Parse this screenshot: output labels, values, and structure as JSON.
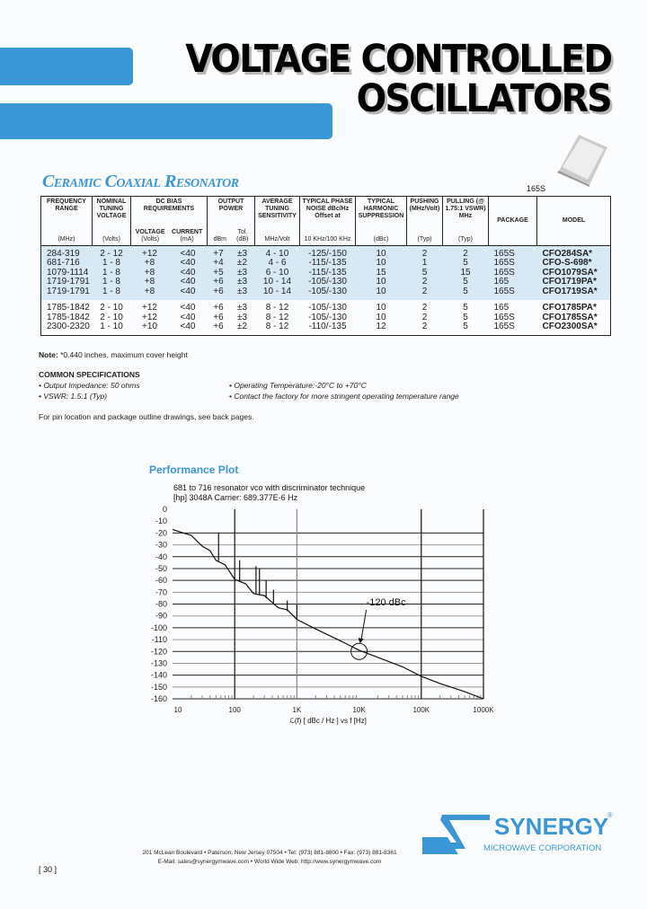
{
  "header": {
    "title_line1": "VOLTAGE CONTROLLED",
    "title_line2": "OSCILLATORS",
    "accent_color": "#3a96d4"
  },
  "section": {
    "subtitle": "Ceramic Coaxial Resonator",
    "package_image_label": "165S"
  },
  "table": {
    "headers": [
      {
        "label": "FREQUENCY RANGE",
        "unit": "(MHz)"
      },
      {
        "label": "NOMINAL TUNING VOLTAGE",
        "unit": "(Volts)"
      },
      {
        "label": "DC BIAS REQUIREMENTS",
        "sub": [
          {
            "label": "VOLTAGE",
            "unit": "(Volts)"
          },
          {
            "label": "CURRENT",
            "unit": "(mA)"
          }
        ]
      },
      {
        "label": "OUTPUT POWER",
        "sub": [
          {
            "label": "",
            "unit": "dBm"
          },
          {
            "label": "Tol.",
            "unit": "(dB)"
          }
        ]
      },
      {
        "label": "AVERAGE TUNING SENSITIVITY",
        "unit": "MHz/Volt"
      },
      {
        "label": "TYPICAL PHASE NOISE dBc/Hz Offset at",
        "unit": "10 KHz/100 KHz"
      },
      {
        "label": "TYPICAL HARMONIC SUPPRESSION",
        "unit": "(dBc)"
      },
      {
        "label": "PUSHING (MHz/Volt)",
        "unit": "(Typ)"
      },
      {
        "label": "PULLING (@ 1.75:1 VSWR) MHz",
        "unit": "(Typ)"
      },
      {
        "label": "PACKAGE",
        "unit": ""
      },
      {
        "label": "MODEL",
        "unit": ""
      }
    ],
    "group1": [
      [
        "284-319",
        "2 - 12",
        "+12",
        "<40",
        "+7",
        "±3",
        "4 - 10",
        "-125/-150",
        "10",
        "2",
        "2",
        "165S",
        "CFO284SA*"
      ],
      [
        "681-716",
        "1 - 8",
        "+8",
        "<40",
        "+4",
        "±2",
        "4 - 6",
        "-115/-135",
        "10",
        "1",
        "5",
        "165S",
        "CFO-S-698*"
      ],
      [
        "1079-1114",
        "1 - 8",
        "+8",
        "<40",
        "+5",
        "±3",
        "6 - 10",
        "-115/-135",
        "15",
        "5",
        "15",
        "165S",
        "CFO1079SA*"
      ],
      [
        "1719-1791",
        "1 - 8",
        "+8",
        "<40",
        "+6",
        "±3",
        "10 - 14",
        "-105/-130",
        "10",
        "2",
        "5",
        "165",
        "CFO1719PA*"
      ],
      [
        "1719-1791",
        "1 - 8",
        "+8",
        "<40",
        "+6",
        "±3",
        "10 - 14",
        "-105/-130",
        "10",
        "2",
        "5",
        "165S",
        "CFO1719SA*"
      ]
    ],
    "group2": [
      [
        "1785-1842",
        "2 - 10",
        "+12",
        "<40",
        "+6",
        "±3",
        "8 - 12",
        "-105/-130",
        "10",
        "2",
        "5",
        "165",
        "CFO1785PA*"
      ],
      [
        "1785-1842",
        "2 - 10",
        "+12",
        "<40",
        "+6",
        "±3",
        "8 - 12",
        "-105/-130",
        "10",
        "2",
        "5",
        "165S",
        "CFO1785SA*"
      ],
      [
        "2300-2320",
        "1 - 10",
        "+10",
        "<40",
        "+6",
        "±2",
        "8 - 12",
        "-110/-135",
        "12",
        "2",
        "5",
        "165S",
        "CFO2300SA*"
      ]
    ]
  },
  "notes": {
    "note_label": "Note:",
    "note_text": " *0.440 inches,  maximum cover height",
    "common_title": "COMMON SPECIFICATIONS",
    "specs": [
      "• Output Impedance: 50 ohms",
      "• Operating Temperature:-20°C to +70°C",
      "• VSWR: 1.5:1 (Typ)",
      "• Contact the factory for more stringent operating temperature range"
    ],
    "pin_note": "For pin location and package outline drawings, see back pages."
  },
  "plot_heading": "Performance Plot",
  "chart_data": {
    "type": "line",
    "title": "681 to 716 resonator vco with discriminator technique",
    "subtitle": "[hp] 3048A Carrier: 689.377E-6 Hz",
    "xlabel": "ℒ(f)  [ dBc / Hz ]  vs f [Hz]",
    "x_scale": "log",
    "xlim": [
      10,
      1000000
    ],
    "ylim": [
      -160,
      0
    ],
    "x_ticks": [
      "10",
      "100",
      "1K",
      "10K",
      "100K",
      "1000K"
    ],
    "y_ticks": [
      "0",
      "-10",
      "-20",
      "-30",
      "-40",
      "-50",
      "-60",
      "-70",
      "-80",
      "-90",
      "-100",
      "-110",
      "-120",
      "-130",
      "-140",
      "-150",
      "-160"
    ],
    "grid": true,
    "series": [
      {
        "x": [
          10,
          15,
          20,
          30,
          40,
          50,
          70,
          100,
          150,
          200,
          300,
          500,
          700,
          1000,
          2000,
          5000,
          10000,
          20000,
          50000,
          100000,
          200000,
          500000,
          1000000
        ],
        "y": [
          -17,
          -20,
          -22,
          -30,
          -36,
          -42,
          -48,
          -58,
          -64,
          -70,
          -74,
          -82,
          -86,
          -93,
          -101,
          -111,
          -119,
          -125,
          -133,
          -141,
          -147,
          -154,
          -160
        ]
      }
    ],
    "spurs": [
      {
        "x": 55,
        "y": -20
      },
      {
        "x": 120,
        "y": -43
      },
      {
        "x": 220,
        "y": -48
      },
      {
        "x": 250,
        "y": -50
      },
      {
        "x": 320,
        "y": -60
      },
      {
        "x": 420,
        "y": -68
      },
      {
        "x": 700,
        "y": -77
      },
      {
        "x": 1000,
        "y": -80
      }
    ],
    "annotation": {
      "text": "-120 dBc",
      "x": 10000,
      "y": -120
    }
  },
  "footer": {
    "address": "201 McLean Boulevard • Paterson, New Jersey 07504 • Tel: (973) 881-8800 • Fax: (973) 881-8361",
    "web": "E-Mail: sales@synergymwave.com • World Wide Web: http://www.synergymwave.com",
    "page": "[ 30 ]",
    "logo_name": "SYNERGY",
    "logo_sub": "MICROWAVE CORPORATION",
    "logo_reg": "®"
  }
}
